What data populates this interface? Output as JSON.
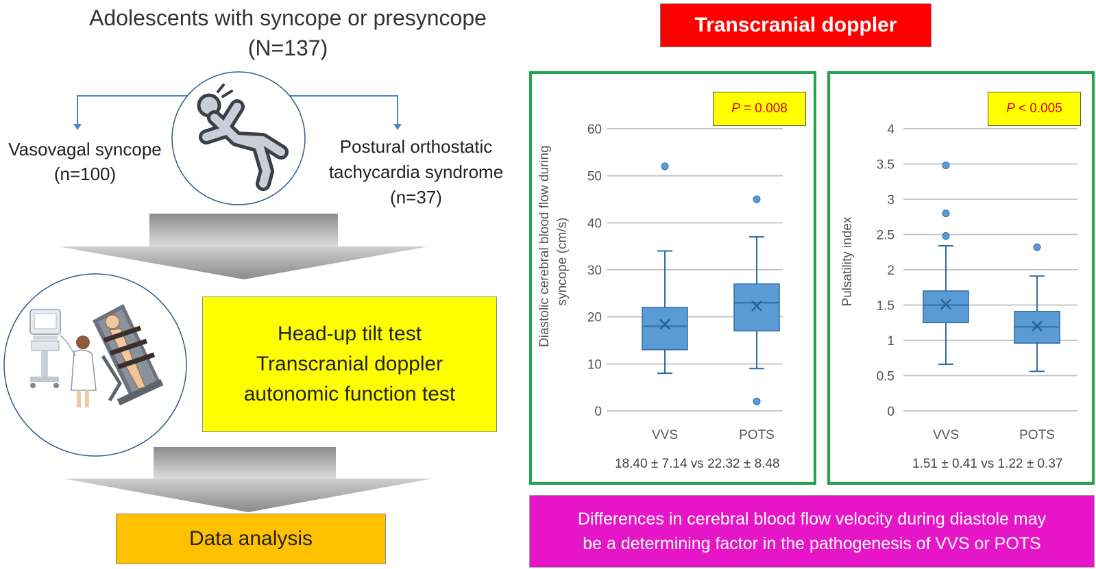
{
  "flow": {
    "title_line1": "Adolescents with syncope or presyncope",
    "title_line2": "(N=137)",
    "group_left_line1": "Vasovagal syncope",
    "group_left_line2": "(n=100)",
    "group_right_line1": "Postural orthostatic",
    "group_right_line2": "tachycardia syndrome",
    "group_right_line3": "(n=37)",
    "tests": [
      "Head-up tilt test",
      "Transcranial doppler",
      "autonomic function test"
    ],
    "analysis": "Data analysis"
  },
  "tcd_header": "Transcranial doppler",
  "conclusion_line1": "Differences in cerebral blood flow velocity during diastole may",
  "conclusion_line2": "be a determining factor in the pathogenesis of VVS or POTS",
  "colors": {
    "box_fill": "#5b9bd5",
    "box_stroke": "#2e6da4",
    "panel_border": "#22a44a",
    "header_red": "#ff0000",
    "yellow": "#ffff00",
    "orange": "#ffc000",
    "magenta": "#e616c8",
    "arrow_blue": "#4a86c8"
  },
  "icons": [
    "fainting-person-icon",
    "tilt-table-exam-icon"
  ],
  "chart_data": [
    {
      "type": "box",
      "ylabel_line1": "Diastolic cerebral blood flow during",
      "ylabel_line2": "syncope (cm/s)",
      "ylim": [
        0,
        60
      ],
      "yticks": [
        0,
        10,
        20,
        30,
        40,
        50,
        60
      ],
      "grid": true,
      "categories": [
        "VVS",
        "POTS"
      ],
      "boxes": [
        {
          "category": "VVS",
          "min": 8,
          "q1": 13,
          "median": 18,
          "q3": 22,
          "max": 34,
          "mean": 18.4,
          "outliers": [
            52
          ]
        },
        {
          "category": "POTS",
          "min": 9,
          "q1": 17,
          "median": 23,
          "q3": 27,
          "max": 37,
          "mean": 22.3,
          "outliers": [
            45,
            2
          ]
        }
      ],
      "p_label": "P",
      "p_text": "= 0.008",
      "stat_text": "18.40 ± 7.14 vs 22.32 ± 8.48"
    },
    {
      "type": "box",
      "ylabel_line1": "Pulsatility index",
      "ylim": [
        0,
        4
      ],
      "yticks": [
        0,
        0.5,
        1,
        1.5,
        2,
        2.5,
        3,
        3.5,
        4
      ],
      "grid": true,
      "categories": [
        "VVS",
        "POTS"
      ],
      "boxes": [
        {
          "category": "VVS",
          "min": 0.66,
          "q1": 1.25,
          "median": 1.5,
          "q3": 1.7,
          "max": 2.34,
          "mean": 1.51,
          "outliers": [
            2.48,
            2.8,
            3.48
          ]
        },
        {
          "category": "POTS",
          "min": 0.56,
          "q1": 0.96,
          "median": 1.19,
          "q3": 1.41,
          "max": 1.91,
          "mean": 1.2,
          "outliers": [
            2.32
          ]
        }
      ],
      "p_label": "P",
      "p_text": "< 0.005",
      "stat_text": "1.51 ± 0.41 vs 1.22 ± 0.37"
    }
  ]
}
